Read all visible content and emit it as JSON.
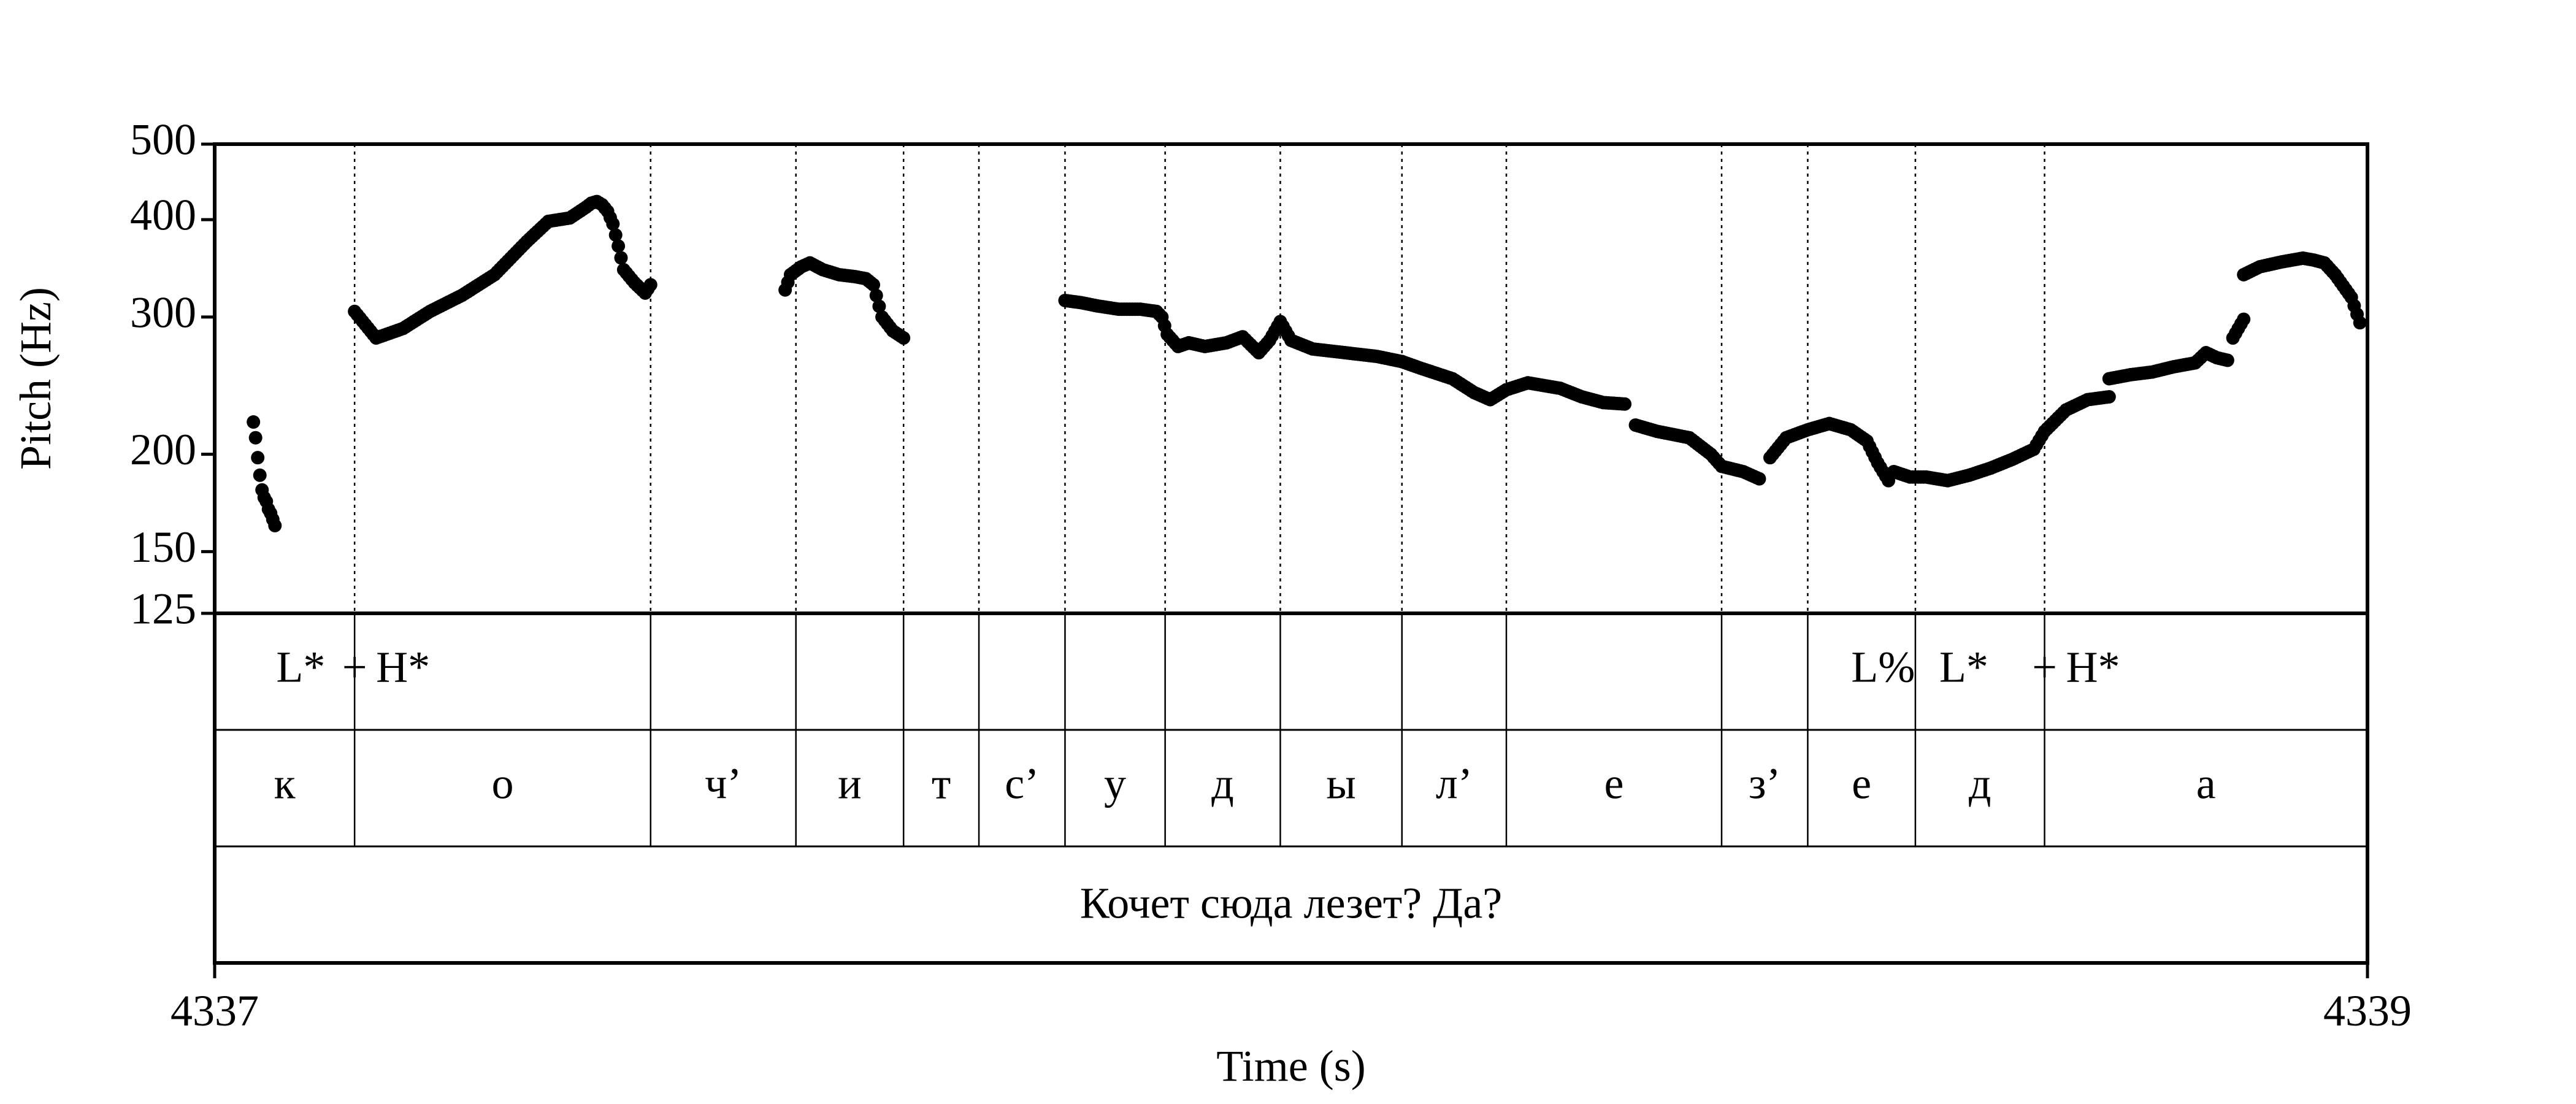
{
  "chart_data": {
    "type": "scatter",
    "title": "",
    "xlabel": "Time (s)",
    "ylabel": "Pitch (Hz)",
    "xlim": [
      4337,
      4339
    ],
    "ylim": [
      125,
      500
    ],
    "y_scale": "log",
    "grid": false,
    "legend": "none",
    "xticks": [
      {
        "value": 4337,
        "label": "4337"
      },
      {
        "value": 4339,
        "label": "4339"
      }
    ],
    "yticks": [
      {
        "value": 500,
        "label": "500"
      },
      {
        "value": 400,
        "label": "400"
      },
      {
        "value": 300,
        "label": "300"
      },
      {
        "value": 200,
        "label": "200"
      },
      {
        "value": 150,
        "label": "150"
      },
      {
        "value": 125,
        "label": "125"
      }
    ],
    "boundaries": [
      4337.13,
      4337.405,
      4337.54,
      4337.64,
      4337.71,
      4337.79,
      4337.883,
      4337.99,
      4338.103,
      4338.2,
      4338.4,
      4338.48,
      4338.58,
      4338.7
    ],
    "tones": [
      {
        "label": "L*",
        "time": 4337.08
      },
      {
        "label": "+",
        "time": 4337.13
      },
      {
        "label": "H*",
        "time": 4337.175
      },
      {
        "label": "L%",
        "time": 4338.55
      },
      {
        "label": "L*",
        "time": 4338.625
      },
      {
        "label": "+",
        "time": 4338.7
      },
      {
        "label": "H*",
        "time": 4338.745
      }
    ],
    "segments": [
      {
        "label": "к",
        "start": 4337.0,
        "end": 4337.13
      },
      {
        "label": "о",
        "start": 4337.13,
        "end": 4337.405
      },
      {
        "label": "ч’",
        "start": 4337.405,
        "end": 4337.54
      },
      {
        "label": "и",
        "start": 4337.54,
        "end": 4337.64
      },
      {
        "label": "т",
        "start": 4337.64,
        "end": 4337.71
      },
      {
        "label": "с’",
        "start": 4337.71,
        "end": 4337.79
      },
      {
        "label": "у",
        "start": 4337.79,
        "end": 4337.883
      },
      {
        "label": "д",
        "start": 4337.883,
        "end": 4337.99
      },
      {
        "label": "ы",
        "start": 4337.99,
        "end": 4338.103
      },
      {
        "label": "л’",
        "start": 4338.103,
        "end": 4338.2
      },
      {
        "label": "е",
        "start": 4338.2,
        "end": 4338.4
      },
      {
        "label": "з’",
        "start": 4338.4,
        "end": 4338.48
      },
      {
        "label": "е",
        "start": 4338.48,
        "end": 4338.58
      },
      {
        "label": "д",
        "start": 4338.58,
        "end": 4338.7
      },
      {
        "label": "а",
        "start": 4338.7,
        "end": 4339.0
      }
    ],
    "sentence": "Кочет сюда лезет? Да?",
    "pitch_contours": [
      {
        "t": [
          4337.036,
          4337.038,
          4337.04,
          4337.042,
          4337.044,
          4337.046,
          4337.048,
          4337.05,
          4337.052,
          4337.054,
          4337.056
        ],
        "hz": [
          220,
          210,
          198,
          188,
          180,
          176,
          174,
          170,
          168,
          165,
          162
        ]
      },
      {
        "t": [
          4337.13,
          4337.15,
          4337.175,
          4337.2,
          4337.23,
          4337.26,
          4337.29,
          4337.31,
          4337.32,
          4337.33,
          4337.345,
          4337.35,
          4337.355,
          4337.36,
          4337.365,
          4337.37,
          4337.375,
          4337.38,
          4337.39,
          4337.4,
          4337.405
        ],
        "hz": [
          305,
          282,
          290,
          305,
          320,
          340,
          375,
          398,
          400,
          402,
          415,
          420,
          422,
          418,
          410,
          395,
          370,
          345,
          332,
          322,
          330
        ]
      },
      {
        "t": [
          4337.53,
          4337.535,
          4337.545,
          4337.553,
          4337.565,
          4337.58,
          4337.595,
          4337.605,
          4337.612,
          4337.62,
          4337.63,
          4337.64
        ],
        "hz": [
          325,
          340,
          348,
          352,
          345,
          340,
          338,
          336,
          330,
          300,
          288,
          282
        ]
      },
      {
        "t": [
          4337.79,
          4337.805,
          4337.82,
          4337.84,
          4337.86,
          4337.875,
          4337.88,
          4337.885,
          4337.895,
          4337.905,
          4337.92,
          4337.94,
          4337.955,
          4337.97,
          4337.98,
          4337.99,
          4338.0,
          4338.02,
          4338.05,
          4338.08,
          4338.103
        ],
        "hz": [
          315,
          313,
          310,
          307,
          307,
          305,
          300,
          285,
          275,
          278,
          275,
          278,
          283,
          270,
          280,
          296,
          280,
          273,
          270,
          267,
          263
        ]
      },
      {
        "t": [
          4338.103,
          4338.12,
          4338.15,
          4338.17,
          4338.185,
          4338.2,
          4338.22,
          4338.25,
          4338.27,
          4338.29,
          4338.31
        ],
        "hz": [
          263,
          258,
          250,
          240,
          235,
          242,
          247,
          243,
          237,
          233,
          232
        ]
      },
      {
        "t": [
          4338.32,
          4338.34,
          4338.37,
          4338.39,
          4338.4,
          4338.42,
          4338.435
        ],
        "hz": [
          218,
          214,
          210,
          200,
          193,
          190,
          186
        ]
      },
      {
        "t": [
          4338.445,
          4338.46,
          4338.48,
          4338.5,
          4338.52,
          4338.535,
          4338.545,
          4338.555
        ],
        "hz": [
          198,
          210,
          215,
          219,
          215,
          208,
          195,
          185
        ]
      },
      {
        "t": [
          4338.56,
          4338.575,
          4338.59,
          4338.61,
          4338.63,
          4338.65,
          4338.67,
          4338.69,
          4338.7,
          4338.72,
          4338.74,
          4338.76
        ],
        "hz": [
          190,
          187,
          187,
          185,
          188,
          192,
          197,
          203,
          214,
          228,
          235,
          237
        ]
      },
      {
        "t": [
          4338.76,
          4338.78,
          4338.8,
          4338.82,
          4338.84,
          4338.85,
          4338.86,
          4338.87
        ],
        "hz": [
          250,
          253,
          255,
          259,
          262,
          270,
          266,
          264
        ]
      },
      {
        "t": [
          4338.875,
          4338.88,
          4338.885
        ],
        "hz": [
          282,
          290,
          298
        ]
      },
      {
        "t": [
          4338.885,
          4338.9,
          4338.92,
          4338.94,
          4338.95,
          4338.96,
          4338.97,
          4338.985,
          4338.993
        ],
        "hz": [
          340,
          348,
          353,
          357,
          355,
          352,
          340,
          318,
          295
        ]
      }
    ]
  }
}
